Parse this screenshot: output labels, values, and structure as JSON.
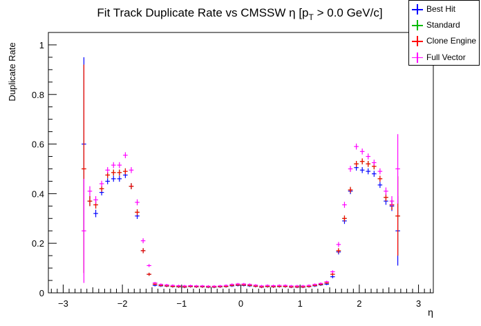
{
  "chart_data": {
    "type": "scatter",
    "title_main": "Fit Track Duplicate Rate vs CMSSW η [p",
    "title_sub": "T",
    "title_tail": " > 0.0 GeV/c]",
    "xlabel": "η",
    "ylabel": "Duplicate Rate",
    "xlim": [
      -3.25,
      3.25
    ],
    "ylim": [
      0,
      1.05
    ],
    "xticks": [
      -3,
      -2,
      -1,
      0,
      1,
      2,
      3
    ],
    "xtick_labels": [
      "−3",
      "−2",
      "−1",
      "0",
      "1",
      "2",
      "3"
    ],
    "yticks": [
      0,
      0.2,
      0.4,
      0.6,
      0.8,
      1
    ],
    "ytick_labels": [
      "0",
      "0.2",
      "0.4",
      "0.6",
      "0.8",
      "1"
    ],
    "bin_half_width": 0.05,
    "legend_position": "top-right",
    "x": [
      -2.65,
      -2.55,
      -2.45,
      -2.35,
      -2.25,
      -2.15,
      -2.05,
      -1.95,
      -1.85,
      -1.75,
      -1.65,
      -1.55,
      -1.45,
      -1.35,
      -1.25,
      -1.15,
      -1.05,
      -0.95,
      -0.85,
      -0.75,
      -0.65,
      -0.55,
      -0.45,
      -0.35,
      -0.25,
      -0.15,
      -0.05,
      0.05,
      0.15,
      0.25,
      0.35,
      0.45,
      0.55,
      0.65,
      0.75,
      0.85,
      0.95,
      1.05,
      1.15,
      1.25,
      1.35,
      1.45,
      1.55,
      1.65,
      1.75,
      1.85,
      1.95,
      2.05,
      2.15,
      2.25,
      2.35,
      2.45,
      2.55,
      2.65
    ],
    "series": [
      {
        "name": "Best Hit",
        "color": "#0000ff",
        "values": [
          0.6,
          0.37,
          0.32,
          0.405,
          0.45,
          0.46,
          0.46,
          0.475,
          0.43,
          0.31,
          0.17,
          0.075,
          0.03,
          0.028,
          0.027,
          0.025,
          0.024,
          0.023,
          0.025,
          0.024,
          0.024,
          0.023,
          0.023,
          0.024,
          0.025,
          0.028,
          0.03,
          0.03,
          0.028,
          0.026,
          0.023,
          0.025,
          0.024,
          0.025,
          0.025,
          0.023,
          0.023,
          0.023,
          0.025,
          0.028,
          0.032,
          0.035,
          0.065,
          0.165,
          0.29,
          0.41,
          0.505,
          0.495,
          0.49,
          0.48,
          0.435,
          0.37,
          0.35,
          0.25
        ],
        "err": [
          0.35,
          0.02,
          0.015,
          0.012,
          0.012,
          0.012,
          0.012,
          0.012,
          0.012,
          0.012,
          0.01,
          0.006,
          0.004,
          0.004,
          0.004,
          0.004,
          0.004,
          0.004,
          0.004,
          0.004,
          0.004,
          0.004,
          0.004,
          0.004,
          0.004,
          0.004,
          0.004,
          0.004,
          0.004,
          0.004,
          0.004,
          0.004,
          0.004,
          0.004,
          0.004,
          0.004,
          0.004,
          0.004,
          0.004,
          0.004,
          0.004,
          0.004,
          0.006,
          0.01,
          0.012,
          0.012,
          0.012,
          0.012,
          0.012,
          0.012,
          0.012,
          0.015,
          0.02,
          0.14
        ]
      },
      {
        "name": "Standard",
        "color": "#00bb00",
        "values": [
          0.5,
          0.37,
          0.355,
          0.42,
          0.475,
          0.485,
          0.485,
          0.49,
          0.43,
          0.325,
          0.17,
          0.075,
          0.035,
          0.03,
          0.028,
          0.026,
          0.025,
          0.024,
          0.026,
          0.025,
          0.025,
          0.024,
          0.024,
          0.025,
          0.026,
          0.03,
          0.032,
          0.032,
          0.03,
          0.027,
          0.024,
          0.026,
          0.025,
          0.026,
          0.026,
          0.024,
          0.024,
          0.024,
          0.026,
          0.03,
          0.034,
          0.04,
          0.075,
          0.17,
          0.3,
          0.415,
          0.52,
          0.53,
          0.52,
          0.51,
          0.46,
          0.385,
          0.355,
          0.31
        ],
        "err": [
          0.42,
          0.02,
          0.015,
          0.012,
          0.012,
          0.012,
          0.012,
          0.012,
          0.012,
          0.012,
          0.01,
          0.006,
          0.004,
          0.004,
          0.004,
          0.004,
          0.004,
          0.004,
          0.004,
          0.004,
          0.004,
          0.004,
          0.004,
          0.004,
          0.004,
          0.004,
          0.004,
          0.004,
          0.004,
          0.004,
          0.004,
          0.004,
          0.004,
          0.004,
          0.004,
          0.004,
          0.004,
          0.004,
          0.004,
          0.004,
          0.004,
          0.004,
          0.006,
          0.01,
          0.012,
          0.012,
          0.012,
          0.012,
          0.012,
          0.012,
          0.012,
          0.015,
          0.02,
          0.16
        ]
      },
      {
        "name": "Clone Engine",
        "color": "#ff0000",
        "values": [
          0.5,
          0.37,
          0.355,
          0.42,
          0.475,
          0.485,
          0.485,
          0.49,
          0.43,
          0.325,
          0.17,
          0.075,
          0.035,
          0.03,
          0.028,
          0.026,
          0.025,
          0.024,
          0.026,
          0.025,
          0.025,
          0.024,
          0.024,
          0.025,
          0.026,
          0.03,
          0.032,
          0.032,
          0.03,
          0.027,
          0.024,
          0.026,
          0.025,
          0.026,
          0.026,
          0.024,
          0.024,
          0.024,
          0.026,
          0.03,
          0.034,
          0.04,
          0.075,
          0.17,
          0.3,
          0.415,
          0.52,
          0.53,
          0.52,
          0.51,
          0.46,
          0.385,
          0.355,
          0.31
        ],
        "err": [
          0.42,
          0.02,
          0.015,
          0.012,
          0.012,
          0.012,
          0.012,
          0.012,
          0.012,
          0.012,
          0.01,
          0.006,
          0.004,
          0.004,
          0.004,
          0.004,
          0.004,
          0.004,
          0.004,
          0.004,
          0.004,
          0.004,
          0.004,
          0.004,
          0.004,
          0.004,
          0.004,
          0.004,
          0.004,
          0.004,
          0.004,
          0.004,
          0.004,
          0.004,
          0.004,
          0.004,
          0.004,
          0.004,
          0.004,
          0.004,
          0.004,
          0.004,
          0.006,
          0.01,
          0.012,
          0.012,
          0.012,
          0.012,
          0.012,
          0.012,
          0.012,
          0.015,
          0.02,
          0.16
        ]
      },
      {
        "name": "Full Vector",
        "color": "#ff00ff",
        "values": [
          0.25,
          0.41,
          0.375,
          0.44,
          0.495,
          0.515,
          0.515,
          0.555,
          0.495,
          0.365,
          0.21,
          0.11,
          0.04,
          0.034,
          0.032,
          0.03,
          0.029,
          0.028,
          0.029,
          0.028,
          0.028,
          0.027,
          0.027,
          0.028,
          0.03,
          0.034,
          0.036,
          0.036,
          0.034,
          0.031,
          0.028,
          0.03,
          0.029,
          0.03,
          0.03,
          0.028,
          0.028,
          0.028,
          0.03,
          0.034,
          0.038,
          0.045,
          0.085,
          0.195,
          0.355,
          0.5,
          0.59,
          0.57,
          0.55,
          0.525,
          0.49,
          0.41,
          0.37,
          0.5
        ],
        "err": [
          0.21,
          0.02,
          0.015,
          0.012,
          0.012,
          0.012,
          0.012,
          0.012,
          0.012,
          0.012,
          0.01,
          0.006,
          0.004,
          0.004,
          0.004,
          0.004,
          0.004,
          0.004,
          0.004,
          0.004,
          0.004,
          0.004,
          0.004,
          0.004,
          0.004,
          0.004,
          0.004,
          0.004,
          0.004,
          0.004,
          0.004,
          0.004,
          0.004,
          0.004,
          0.004,
          0.004,
          0.004,
          0.004,
          0.004,
          0.004,
          0.004,
          0.004,
          0.006,
          0.01,
          0.012,
          0.012,
          0.012,
          0.012,
          0.012,
          0.012,
          0.012,
          0.015,
          0.02,
          0.14
        ]
      }
    ]
  }
}
